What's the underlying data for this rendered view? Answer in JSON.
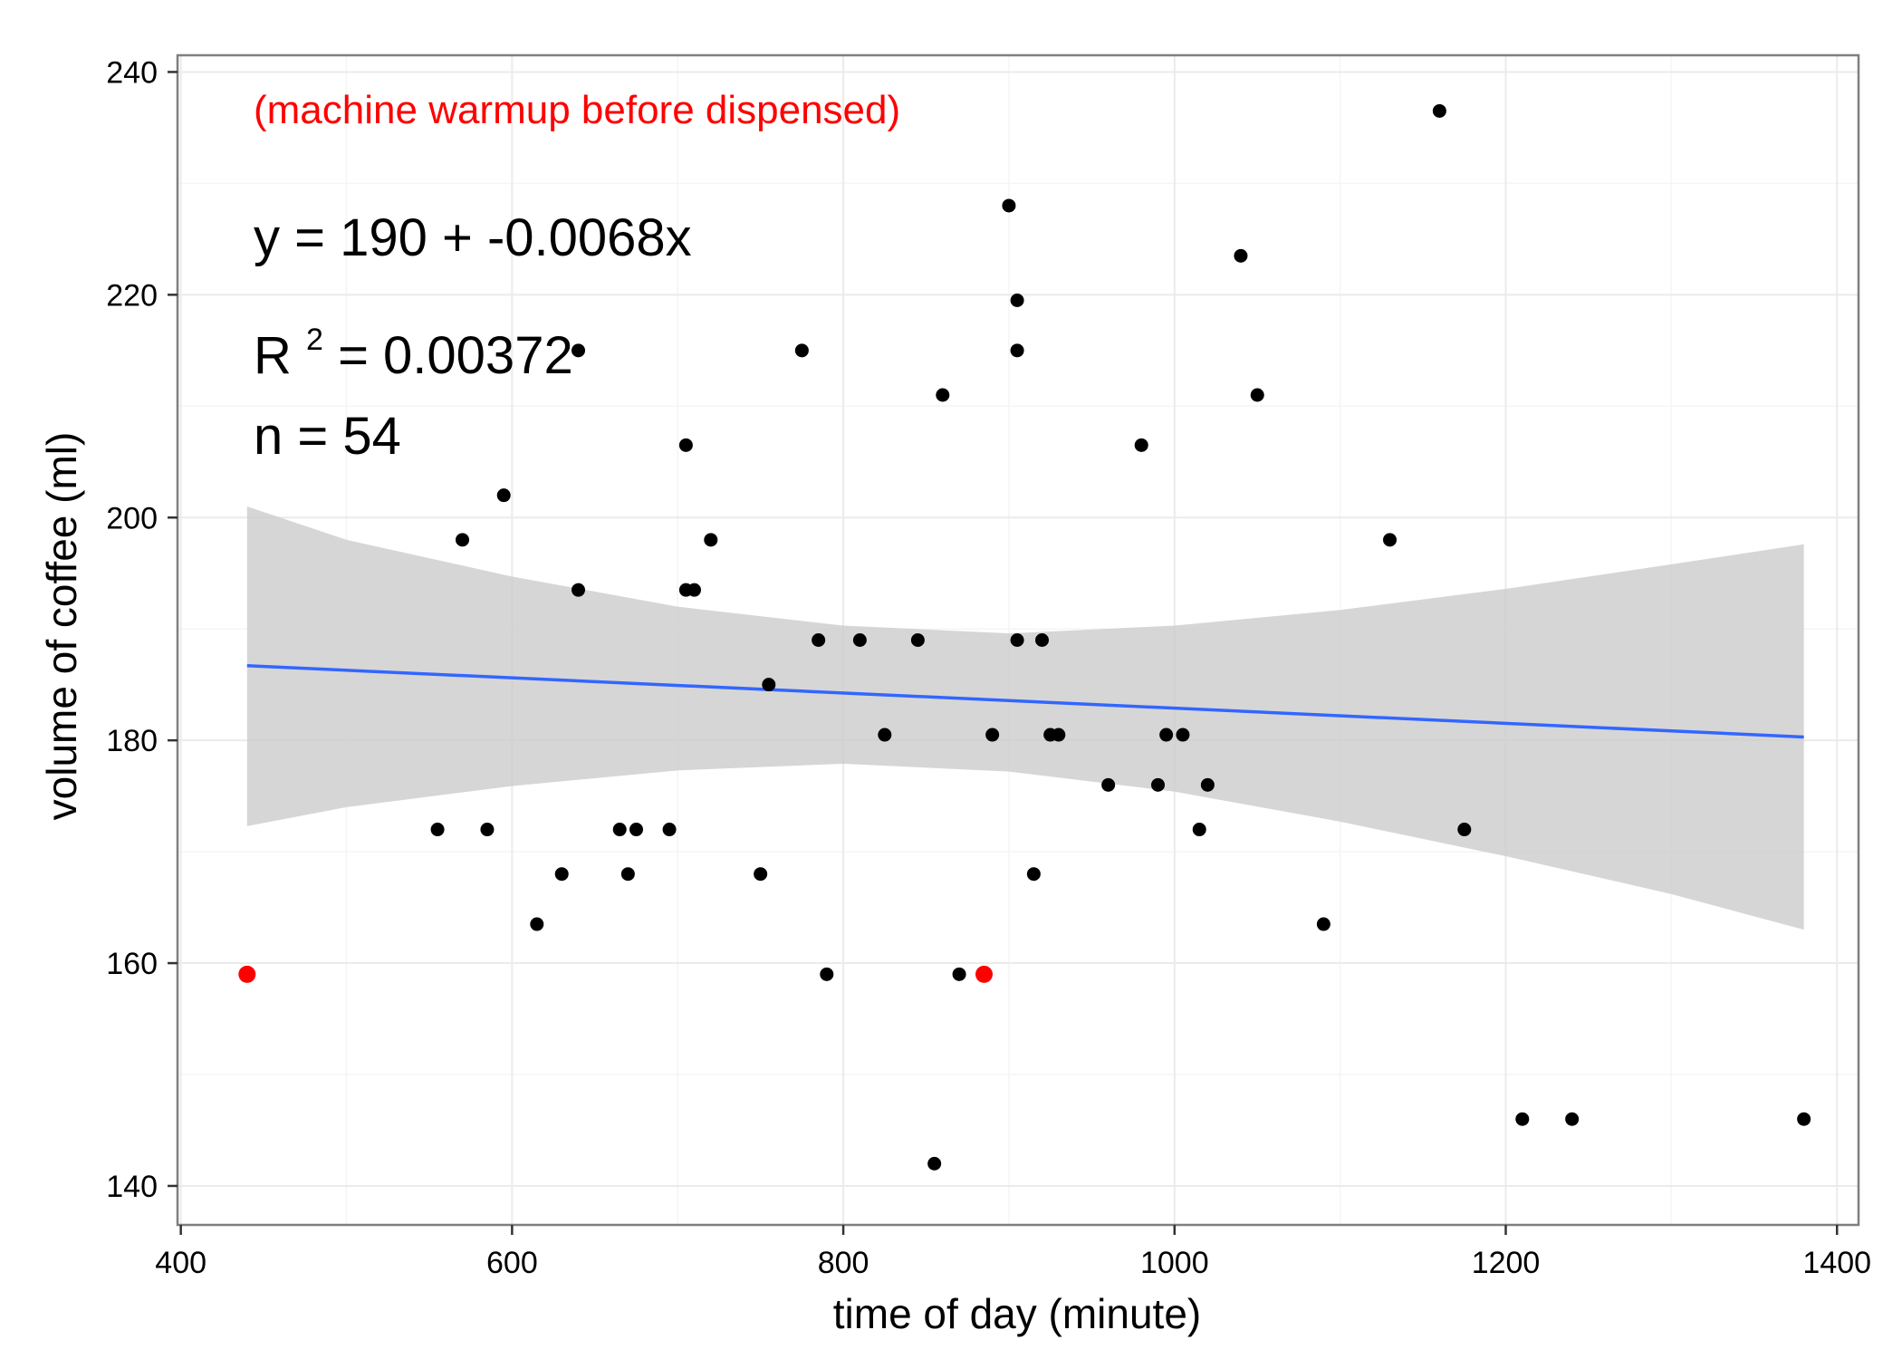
{
  "chart_data": {
    "type": "scatter",
    "title": "",
    "xlabel": "time of day (minute)",
    "ylabel": "volume of coffee (ml)",
    "xlim": [
      398,
      1413
    ],
    "ylim": [
      136.5,
      241.5
    ],
    "x_ticks": [
      400,
      600,
      800,
      1000,
      1200,
      1400
    ],
    "y_ticks": [
      140,
      160,
      180,
      200,
      220,
      240
    ],
    "grid": true,
    "legend": "none",
    "colors": {
      "points": "#000000",
      "highlight": "#ff0000",
      "fit_line": "#3366ff",
      "confidence_band": "#cccccc",
      "panel_border": "#7f7f7f",
      "grid": "#ebebeb"
    },
    "annotations": {
      "warmup_note": "(machine warmup before dispensed)",
      "equation": "y = 190 + -0.0068x",
      "r_squared_prefix": "R",
      "r_squared_exponent": "2",
      "r_squared_value": " = 0.00372",
      "n": "n = 54"
    },
    "series": [
      {
        "type": "scatter",
        "color": "#000000",
        "points": [
          [
            555,
            172
          ],
          [
            570,
            198
          ],
          [
            585,
            172
          ],
          [
            595,
            202
          ],
          [
            615,
            163.5
          ],
          [
            630,
            168
          ],
          [
            640,
            193.5
          ],
          [
            640,
            215
          ],
          [
            665,
            172
          ],
          [
            670,
            168
          ],
          [
            675,
            172
          ],
          [
            695,
            172
          ],
          [
            705,
            206.5
          ],
          [
            705,
            193.5
          ],
          [
            710,
            193.5
          ],
          [
            720,
            198
          ],
          [
            750,
            168
          ],
          [
            755,
            185
          ],
          [
            775,
            215
          ],
          [
            785,
            189
          ],
          [
            790,
            159
          ],
          [
            810,
            189
          ],
          [
            825,
            180.5
          ],
          [
            845,
            189
          ],
          [
            855,
            142
          ],
          [
            860,
            211
          ],
          [
            870,
            159
          ],
          [
            890,
            180.5
          ],
          [
            900,
            228
          ],
          [
            905,
            219.5
          ],
          [
            905,
            215
          ],
          [
            905,
            189
          ],
          [
            915,
            168
          ],
          [
            920,
            189
          ],
          [
            925,
            180.5
          ],
          [
            930,
            180.5
          ],
          [
            960,
            176
          ],
          [
            980,
            206.5
          ],
          [
            990,
            176
          ],
          [
            995,
            180.5
          ],
          [
            1005,
            180.5
          ],
          [
            1015,
            172
          ],
          [
            1020,
            176
          ],
          [
            1040,
            223.5
          ],
          [
            1050,
            211
          ],
          [
            1090,
            163.5
          ],
          [
            1130,
            198
          ],
          [
            1160,
            236.5
          ],
          [
            1175,
            172
          ],
          [
            1210,
            146
          ],
          [
            1240,
            146
          ],
          [
            1380,
            146
          ]
        ]
      },
      {
        "type": "scatter",
        "color": "#ff0000",
        "points": [
          [
            440,
            159
          ],
          [
            885,
            159
          ]
        ]
      },
      {
        "type": "line",
        "color": "#3366ff",
        "points": [
          [
            440,
            186.7
          ],
          [
            1380,
            180.3
          ]
        ]
      },
      {
        "type": "area",
        "color": "#cccccc",
        "x": [
          440,
          500,
          600,
          700,
          800,
          900,
          1000,
          1100,
          1200,
          1300,
          1380
        ],
        "lower": [
          172.3,
          174.0,
          175.9,
          177.3,
          177.9,
          177.2,
          175.4,
          172.7,
          169.6,
          166.2,
          163.0
        ],
        "upper": [
          201.0,
          198.0,
          194.7,
          192.0,
          190.3,
          189.6,
          190.3,
          191.7,
          193.6,
          195.8,
          197.6
        ]
      }
    ]
  }
}
